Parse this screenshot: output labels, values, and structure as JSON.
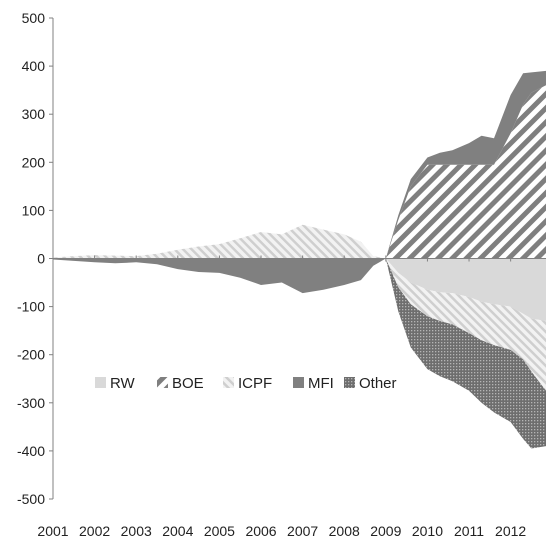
{
  "chart_data": {
    "type": "area",
    "title": "",
    "xlabel": "",
    "ylabel": "",
    "ylim": [
      -500,
      500
    ],
    "xlim": [
      2001,
      2012.85
    ],
    "y_ticks": [
      500,
      400,
      300,
      200,
      100,
      0,
      -100,
      -200,
      -300,
      -400,
      -500
    ],
    "y_tick_labels": [
      "500",
      "400",
      "300",
      "200",
      "100",
      "0",
      "-100",
      "-200",
      "-300",
      "-400",
      "-500"
    ],
    "x_ticks": [
      2001,
      2002,
      2003,
      2004,
      2005,
      2006,
      2007,
      2008,
      2009,
      2010,
      2011,
      2012
    ],
    "x_tick_labels": [
      "2001",
      "2002",
      "2003",
      "2004",
      "2005",
      "2006",
      "2007",
      "2008",
      "2009",
      "2010",
      "2011",
      "2012"
    ],
    "grid": false,
    "legend_position": "middle-left",
    "x": [
      2001,
      2001.5,
      2002,
      2002.5,
      2003,
      2003.5,
      2004,
      2004.5,
      2005,
      2005.5,
      2006,
      2006.5,
      2007,
      2007.5,
      2008,
      2008.4,
      2008.7,
      2009,
      2009.3,
      2009.6,
      2010,
      2010.3,
      2010.6,
      2011,
      2011.3,
      2011.6,
      2012,
      2012.3,
      2012.5,
      2012.85
    ],
    "series": [
      {
        "name": "RW",
        "color": "#d9d9d9",
        "pattern": "solid",
        "values": [
          0,
          0,
          0,
          0,
          0,
          0,
          0,
          0,
          0,
          0,
          0,
          0,
          0,
          0,
          0,
          0,
          0,
          0,
          -30,
          -50,
          -65,
          -70,
          -72,
          -80,
          -90,
          -95,
          -100,
          -115,
          -125,
          -130
        ]
      },
      {
        "name": "BOE",
        "color": "#7f7f7f",
        "pattern": "diagonal",
        "values": [
          0,
          0,
          0,
          0,
          0,
          0,
          0,
          0,
          0,
          0,
          0,
          0,
          0,
          0,
          0,
          0,
          0,
          0,
          80,
          150,
          195,
          195,
          195,
          195,
          195,
          195,
          260,
          320,
          345,
          360
        ]
      },
      {
        "name": "ICPF",
        "color": "#d9d9d9",
        "pattern": "light-diagonal",
        "values": [
          2,
          5,
          7,
          6,
          5,
          10,
          18,
          25,
          30,
          42,
          55,
          50,
          70,
          60,
          50,
          35,
          5,
          0,
          -30,
          -45,
          -55,
          -60,
          -65,
          -75,
          -80,
          -85,
          -90,
          -95,
          -110,
          -145
        ]
      },
      {
        "name": "MFI",
        "color": "#808080",
        "pattern": "solid",
        "values": [
          -2,
          -5,
          -8,
          -10,
          -8,
          -12,
          -22,
          -28,
          -30,
          -40,
          -55,
          -50,
          -72,
          -65,
          -55,
          -45,
          -15,
          0,
          10,
          15,
          15,
          25,
          30,
          45,
          60,
          55,
          80,
          65,
          42,
          30
        ]
      },
      {
        "name": "Other",
        "color": "#7f7f7f",
        "pattern": "dotted",
        "values": [
          0,
          0,
          0,
          0,
          0,
          0,
          0,
          0,
          0,
          0,
          0,
          0,
          0,
          0,
          0,
          0,
          0,
          0,
          -50,
          -90,
          -110,
          -115,
          -118,
          -120,
          -130,
          -140,
          -150,
          -165,
          -160,
          -115
        ]
      }
    ]
  }
}
